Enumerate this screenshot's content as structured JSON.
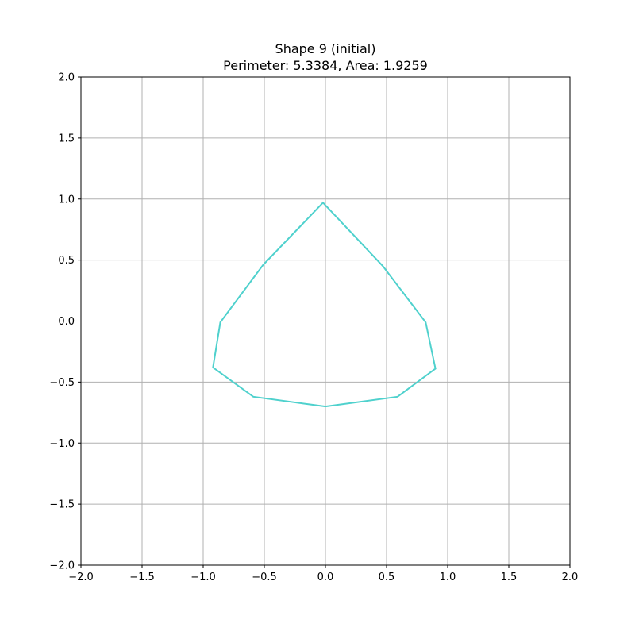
{
  "chart_data": {
    "type": "line",
    "title": "Shape 9 (initial)",
    "subtitle": "Perimeter: 5.3384, Area: 1.9259",
    "xlabel": "",
    "ylabel": "",
    "xlim": [
      -2.0,
      2.0
    ],
    "ylim": [
      -2.0,
      2.0
    ],
    "grid": true,
    "closed": true,
    "line_color": "#4fd1cd",
    "x_ticks": [
      -2.0,
      -1.5,
      -1.0,
      -0.5,
      0.0,
      0.5,
      1.0,
      1.5,
      2.0
    ],
    "x_tick_labels": [
      "−2.0",
      "−1.5",
      "−1.0",
      "−0.5",
      "0.0",
      "0.5",
      "1.0",
      "1.5",
      "2.0"
    ],
    "y_ticks": [
      -2.0,
      -1.5,
      -1.0,
      -0.5,
      0.0,
      0.5,
      1.0,
      1.5,
      2.0
    ],
    "y_tick_labels": [
      "−2.0",
      "−1.5",
      "−1.0",
      "−0.5",
      "0.0",
      "0.5",
      "1.0",
      "1.5",
      "2.0"
    ],
    "points": [
      {
        "x": -0.02,
        "y": 0.97
      },
      {
        "x": 0.47,
        "y": 0.45
      },
      {
        "x": 0.82,
        "y": -0.01
      },
      {
        "x": 0.9,
        "y": -0.39
      },
      {
        "x": 0.59,
        "y": -0.62
      },
      {
        "x": 0.0,
        "y": -0.7
      },
      {
        "x": -0.59,
        "y": -0.62
      },
      {
        "x": -0.92,
        "y": -0.38
      },
      {
        "x": -0.86,
        "y": -0.01
      },
      {
        "x": -0.51,
        "y": 0.46
      }
    ]
  }
}
